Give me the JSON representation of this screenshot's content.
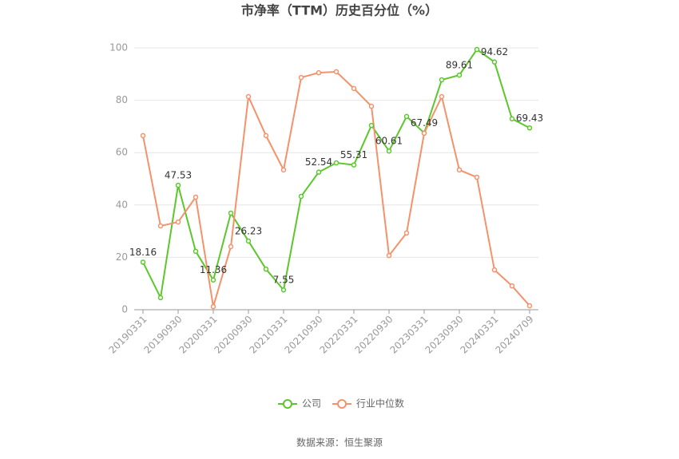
{
  "chart_data": {
    "type": "line",
    "title": "市净率（TTM）历史百分位（%）",
    "source": "数据来源：恒生聚源",
    "categories": [
      "20190331",
      null,
      "20190930",
      null,
      "20200331",
      null,
      "20200930",
      null,
      "20210331",
      null,
      "20210930",
      null,
      "20220331",
      null,
      "20220930",
      null,
      "20230331",
      null,
      "20230930",
      null,
      "20240331",
      null,
      "20240709"
    ],
    "series": [
      {
        "name": "公司",
        "color": "#5cc72c",
        "values": [
          18.16,
          4.6,
          47.53,
          22.3,
          11.36,
          36.9,
          26.23,
          15.5,
          7.55,
          43.3,
          52.54,
          56.1,
          55.31,
          70.4,
          60.61,
          73.8,
          67.49,
          87.8,
          89.61,
          99.4,
          94.62,
          72.9,
          69.43
        ],
        "value_labels": [
          "18.16",
          null,
          "47.53",
          null,
          "11.36",
          null,
          "26.23",
          null,
          "7.55",
          null,
          "52.54",
          null,
          "55.31",
          null,
          "60.61",
          null,
          "67.49",
          null,
          "89.61",
          null,
          "94.62",
          null,
          "69.43"
        ]
      },
      {
        "name": "行业中位数",
        "color": "#f4926b",
        "values": [
          66.5,
          32.0,
          33.5,
          43.0,
          1.2,
          24.1,
          81.4,
          66.5,
          53.4,
          88.7,
          90.5,
          90.9,
          84.5,
          77.7,
          20.7,
          29.3,
          67.4,
          81.4,
          53.4,
          50.6,
          15.2,
          9.1,
          1.5
        ]
      }
    ],
    "ylim": [
      0,
      100
    ],
    "yticks": [
      0,
      20,
      40,
      60,
      80,
      100
    ],
    "grid": true,
    "legend": "bottom"
  }
}
